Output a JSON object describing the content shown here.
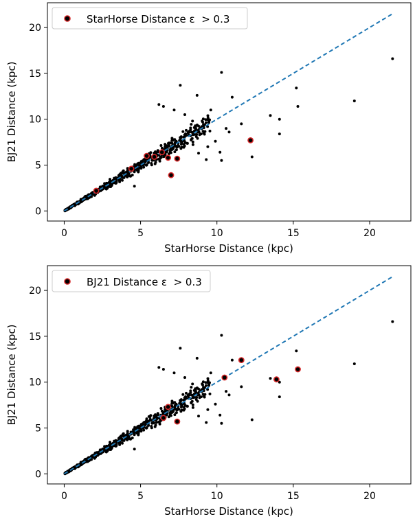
{
  "chart_data": [
    {
      "type": "scatter",
      "xlabel": "StarHorse Distance (kpc)",
      "ylabel": "BJ21 Distance (kpc)",
      "xlim": [
        -1.1,
        22.7
      ],
      "ylim": [
        -1.1,
        22.7
      ],
      "xticks": [
        0,
        5,
        10,
        15,
        20
      ],
      "yticks": [
        0,
        5,
        10,
        15,
        20
      ],
      "grid": false,
      "legend": {
        "placement": "top-left",
        "label": "StarHorse Distance ε  > 0.3"
      },
      "reference_line": {
        "style": "dashed",
        "color": "#1f77b4",
        "x": [
          0,
          21.5
        ],
        "y": [
          0,
          21.5
        ]
      },
      "series": [
        {
          "name": "StarHorse Distance ε  > 0.3",
          "color": "#d62728",
          "points": [
            [
              2.1,
              2.2
            ],
            [
              4.4,
              4.6
            ],
            [
              5.4,
              6.0
            ],
            [
              5.9,
              5.9
            ],
            [
              6.4,
              6.4
            ],
            [
              6.8,
              5.8
            ],
            [
              7.0,
              3.9
            ],
            [
              7.4,
              5.7
            ],
            [
              12.2,
              7.7
            ]
          ]
        }
      ]
    },
    {
      "type": "scatter",
      "xlabel": "StarHorse Distance (kpc)",
      "ylabel": "BJ21 Distance (kpc)",
      "xlim": [
        -1.1,
        22.7
      ],
      "ylim": [
        -1.1,
        22.7
      ],
      "xticks": [
        0,
        5,
        10,
        15,
        20
      ],
      "yticks": [
        0,
        5,
        10,
        15,
        20
      ],
      "grid": false,
      "legend": {
        "placement": "top-left",
        "label": "BJ21 Distance ε  > 0.3"
      },
      "reference_line": {
        "style": "dashed",
        "color": "#1f77b4",
        "x": [
          0,
          21.5
        ],
        "y": [
          0,
          21.5
        ]
      },
      "series": [
        {
          "name": "BJ21 Distance ε  > 0.3",
          "color": "#d62728",
          "points": [
            [
              6.5,
              6.1
            ],
            [
              6.8,
              7.3
            ],
            [
              7.4,
              5.7
            ],
            [
              10.5,
              10.5
            ],
            [
              11.6,
              12.4
            ],
            [
              13.9,
              10.3
            ],
            [
              15.3,
              11.4
            ]
          ]
        }
      ]
    }
  ],
  "outlier_points": [
    [
      10.3,
      15.1
    ],
    [
      7.6,
      13.7
    ],
    [
      8.7,
      12.6
    ],
    [
      6.2,
      11.6
    ],
    [
      11.0,
      12.4
    ],
    [
      13.5,
      10.4
    ],
    [
      14.1,
      10.0
    ],
    [
      15.2,
      13.4
    ],
    [
      15.3,
      11.4
    ],
    [
      19.0,
      12.0
    ],
    [
      21.5,
      16.6
    ],
    [
      10.3,
      5.5
    ],
    [
      12.3,
      5.9
    ],
    [
      14.1,
      8.4
    ],
    [
      9.6,
      11.0
    ],
    [
      10.6,
      9.0
    ],
    [
      11.6,
      9.5
    ],
    [
      10.8,
      8.6
    ],
    [
      9.0,
      9.2
    ],
    [
      8.4,
      9.8
    ],
    [
      7.9,
      10.5
    ],
    [
      9.4,
      7.0
    ],
    [
      8.8,
      6.3
    ],
    [
      9.9,
      7.6
    ],
    [
      4.6,
      2.7
    ],
    [
      6.5,
      11.4
    ],
    [
      7.2,
      11.0
    ],
    [
      10.2,
      6.4
    ],
    [
      9.3,
      5.6
    ]
  ]
}
